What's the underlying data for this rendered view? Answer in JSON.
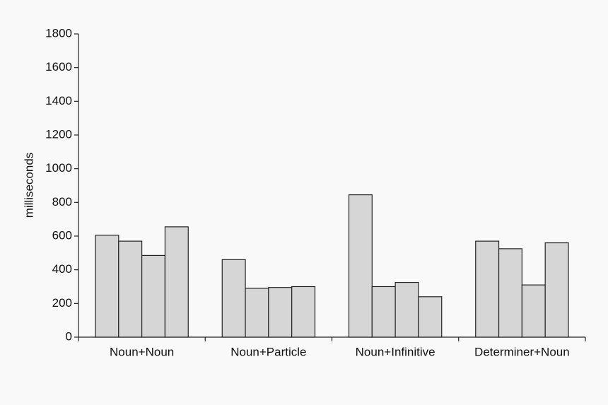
{
  "chart_data": {
    "type": "grouped_bar",
    "y_label": "milliseconds",
    "categories": [
      "Noun+Noun",
      "Noun+Particle",
      "Noun+Infinitive",
      "Determiner+Noun"
    ],
    "series": [
      {
        "color": "#d6d6d6",
        "values": [
          605,
          460,
          845,
          570
        ]
      },
      {
        "color": "#d6d6d6",
        "values": [
          570,
          290,
          300,
          525
        ]
      },
      {
        "color": "#d6d6d6",
        "values": [
          485,
          295,
          325,
          310
        ]
      },
      {
        "color": "#d6d6d6",
        "values": [
          655,
          300,
          240,
          560
        ]
      }
    ],
    "ylim": [
      0,
      1800
    ],
    "yticks": [
      0,
      200,
      400,
      600,
      800,
      1000,
      1200,
      1400,
      1600,
      1800
    ],
    "grid": false
  }
}
